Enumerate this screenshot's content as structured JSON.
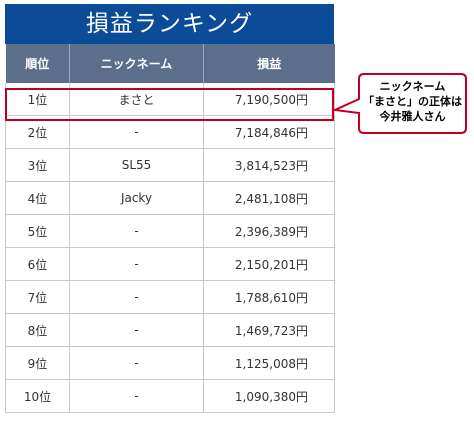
{
  "title": "損益ランキング",
  "headers": {
    "rank": "順位",
    "nickname": "ニックネーム",
    "profit": "損益"
  },
  "rows": [
    {
      "rank": "1位",
      "name": "まさと",
      "profit": "7,190,500円"
    },
    {
      "rank": "2位",
      "name": "-",
      "profit": "7,184,846円"
    },
    {
      "rank": "3位",
      "name": "SL55",
      "profit": "3,814,523円"
    },
    {
      "rank": "4位",
      "name": "Jacky",
      "profit": "2,481,108円"
    },
    {
      "rank": "5位",
      "name": "-",
      "profit": "2,396,389円"
    },
    {
      "rank": "6位",
      "name": "-",
      "profit": "2,150,201円"
    },
    {
      "rank": "7位",
      "name": "-",
      "profit": "1,788,610円"
    },
    {
      "rank": "8位",
      "name": "-",
      "profit": "1,469,723円"
    },
    {
      "rank": "9位",
      "name": "-",
      "profit": "1,125,008円"
    },
    {
      "rank": "10位",
      "name": "-",
      "profit": "1,090,380円"
    }
  ],
  "callout": {
    "line1": "ニックネーム",
    "line2": "「まさと」の正体は",
    "line3": "今井雅人さん"
  },
  "colors": {
    "title_bg": "#0b4b98",
    "header_bg": "#5b6f8c",
    "highlight": "#c0001e"
  }
}
